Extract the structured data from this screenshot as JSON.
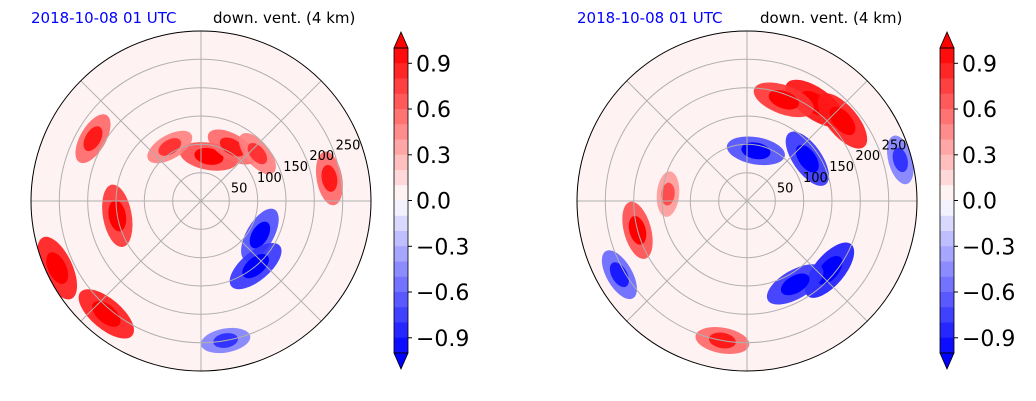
{
  "chart_data": [
    {
      "type": "heatmap",
      "projection": "polar",
      "title_left": "2018-10-08 01 UTC",
      "title_right": "down. vent. (4 km)",
      "radial_ticks": [
        "50",
        "100",
        "150",
        "200",
        "250"
      ],
      "colorbar": {
        "ticks": [
          "0.9",
          "0.6",
          "0.3",
          "0.0",
          "−0.3",
          "−0.6",
          "−0.9"
        ],
        "range": [
          -1.0,
          1.0
        ],
        "extend": "both",
        "colors": {
          "positive": "#ff0000",
          "zero": "#ffffff",
          "negative": "#0000ff"
        }
      },
      "features": [
        {
          "theta_deg": 80,
          "r": 80,
          "value": 0.7
        },
        {
          "theta_deg": 60,
          "r": 110,
          "value": 0.6
        },
        {
          "theta_deg": 40,
          "r": 130,
          "value": 0.5
        },
        {
          "theta_deg": 190,
          "r": 150,
          "value": 0.8
        },
        {
          "theta_deg": 230,
          "r": 260,
          "value": 0.9
        },
        {
          "theta_deg": 205,
          "r": 280,
          "value": 0.9
        },
        {
          "theta_deg": -30,
          "r": 120,
          "value": -0.7
        },
        {
          "theta_deg": -50,
          "r": 150,
          "value": -0.8
        },
        {
          "theta_deg": 150,
          "r": 220,
          "value": 0.6
        },
        {
          "theta_deg": 120,
          "r": 110,
          "value": 0.5
        },
        {
          "theta_deg": 10,
          "r": 230,
          "value": 0.6
        },
        {
          "theta_deg": -80,
          "r": 250,
          "value": -0.5
        }
      ]
    },
    {
      "type": "heatmap",
      "projection": "polar",
      "title_left": "2018-10-08 01 UTC",
      "title_right": "down. vent. (4 km)",
      "radial_ticks": [
        "50",
        "100",
        "150",
        "200",
        "250"
      ],
      "colorbar": {
        "ticks": [
          "0.9",
          "0.6",
          "0.3",
          "0.0",
          "−0.3",
          "−0.6",
          "−0.9"
        ],
        "range": [
          -1.0,
          1.0
        ],
        "extend": "both",
        "colors": {
          "positive": "#ff0000",
          "zero": "#ffffff",
          "negative": "#0000ff"
        }
      },
      "features": [
        {
          "theta_deg": 55,
          "r": 210,
          "value": 0.95
        },
        {
          "theta_deg": 40,
          "r": 220,
          "value": 0.9
        },
        {
          "theta_deg": 70,
          "r": 190,
          "value": 0.8
        },
        {
          "theta_deg": 80,
          "r": 90,
          "value": -0.7
        },
        {
          "theta_deg": 35,
          "r": 130,
          "value": -0.8
        },
        {
          "theta_deg": -40,
          "r": 190,
          "value": -0.9
        },
        {
          "theta_deg": -60,
          "r": 170,
          "value": -0.8
        },
        {
          "theta_deg": 195,
          "r": 200,
          "value": 0.7
        },
        {
          "theta_deg": 210,
          "r": 260,
          "value": -0.6
        },
        {
          "theta_deg": 260,
          "r": 250,
          "value": 0.6
        },
        {
          "theta_deg": 175,
          "r": 140,
          "value": 0.4
        },
        {
          "theta_deg": 15,
          "r": 280,
          "value": -0.5
        }
      ]
    }
  ]
}
